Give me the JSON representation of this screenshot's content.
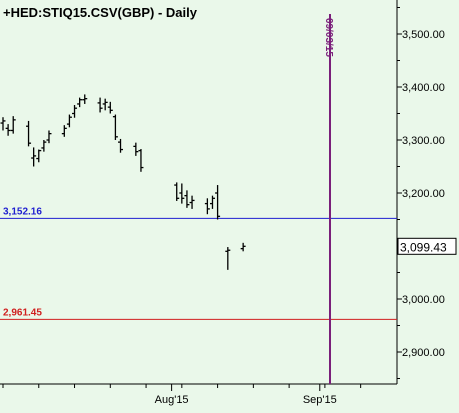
{
  "header": {
    "title": "+HED:STIQ15.CSV(GBP) - Daily"
  },
  "colors": {
    "background": "#eaf8ea",
    "bars": "#000000",
    "horizontal_line_blue": "#1f1fd0",
    "horizontal_line_red": "#d01f1f",
    "vertical_marker": "#7a1f7a",
    "axis_text": "#000000",
    "label_box_bg": "#ffffff"
  },
  "chart_data": {
    "type": "ohlc",
    "title": "+HED:STIQ15.CSV(GBP) - Daily",
    "xlabel": "",
    "ylabel": "",
    "ylim": [
      2830,
      3570
    ],
    "x_ticks": [
      {
        "date": "2015-08-03",
        "label": "Aug'15"
      },
      {
        "date": "2015-09-01",
        "label": "Sep'15"
      }
    ],
    "y_ticks": [
      {
        "value": 3500,
        "label": "3,500.00"
      },
      {
        "value": 3400,
        "label": "3,400.00"
      },
      {
        "value": 3300,
        "label": "3,300.00"
      },
      {
        "value": 3200,
        "label": "3,200.00"
      },
      {
        "value": 3100,
        "label": "3,100.00"
      },
      {
        "value": 3000,
        "label": "3,000.00"
      },
      {
        "value": 2900,
        "label": "2,900.00"
      }
    ],
    "last_value_label": {
      "value": 3099.43,
      "label": "3,099.43"
    },
    "horizontal_lines": [
      {
        "value": 3152.16,
        "label": "3,152.16",
        "color": "#1f1fd0"
      },
      {
        "value": 2961.45,
        "label": "2,961.45",
        "color": "#d01f1f"
      }
    ],
    "vertical_markers": [
      {
        "date": "2015-09-03",
        "label": "09/03/15",
        "color": "#7a1f7a"
      }
    ],
    "series": [
      {
        "values": [
          {
            "date": "2015-07-01",
            "open": 3332,
            "high": 3343,
            "low": 3318,
            "close": 3336
          },
          {
            "date": "2015-07-02",
            "open": 3322,
            "high": 3330,
            "low": 3308,
            "close": 3318
          },
          {
            "date": "2015-07-03",
            "open": 3318,
            "high": 3345,
            "low": 3312,
            "close": 3338
          },
          {
            "date": "2015-07-06",
            "open": 3326,
            "high": 3336,
            "low": 3288,
            "close": 3294
          },
          {
            "date": "2015-07-07",
            "open": 3266,
            "high": 3286,
            "low": 3250,
            "close": 3270
          },
          {
            "date": "2015-07-08",
            "open": 3265,
            "high": 3282,
            "low": 3258,
            "close": 3280
          },
          {
            "date": "2015-07-09",
            "open": 3285,
            "high": 3300,
            "low": 3278,
            "close": 3296
          },
          {
            "date": "2015-07-10",
            "open": 3300,
            "high": 3318,
            "low": 3294,
            "close": 3312
          },
          {
            "date": "2015-07-13",
            "open": 3312,
            "high": 3328,
            "low": 3306,
            "close": 3322
          },
          {
            "date": "2015-07-14",
            "open": 3330,
            "high": 3348,
            "low": 3324,
            "close": 3343
          },
          {
            "date": "2015-07-15",
            "open": 3350,
            "high": 3366,
            "low": 3342,
            "close": 3360
          },
          {
            "date": "2015-07-16",
            "open": 3368,
            "high": 3380,
            "low": 3362,
            "close": 3376
          },
          {
            "date": "2015-07-17",
            "open": 3376,
            "high": 3386,
            "low": 3368,
            "close": 3378
          },
          {
            "date": "2015-07-20",
            "open": 3370,
            "high": 3380,
            "low": 3352,
            "close": 3360
          },
          {
            "date": "2015-07-21",
            "open": 3368,
            "high": 3378,
            "low": 3356,
            "close": 3371
          },
          {
            "date": "2015-07-22",
            "open": 3362,
            "high": 3372,
            "low": 3350,
            "close": 3356
          },
          {
            "date": "2015-07-23",
            "open": 3344,
            "high": 3348,
            "low": 3300,
            "close": 3306
          },
          {
            "date": "2015-07-24",
            "open": 3296,
            "high": 3302,
            "low": 3276,
            "close": 3282
          },
          {
            "date": "2015-07-27",
            "open": 3288,
            "high": 3295,
            "low": 3270,
            "close": 3278
          },
          {
            "date": "2015-07-28",
            "open": 3280,
            "high": 3283,
            "low": 3240,
            "close": 3248
          },
          {
            "date": "2015-08-04",
            "open": 3215,
            "high": 3220,
            "low": 3185,
            "close": 3190
          },
          {
            "date": "2015-08-05",
            "open": 3200,
            "high": 3218,
            "low": 3180,
            "close": 3190
          },
          {
            "date": "2015-08-06",
            "open": 3195,
            "high": 3205,
            "low": 3172,
            "close": 3178
          },
          {
            "date": "2015-08-07",
            "open": 3182,
            "high": 3195,
            "low": 3170,
            "close": 3186
          },
          {
            "date": "2015-08-10",
            "open": 3180,
            "high": 3190,
            "low": 3160,
            "close": 3170
          },
          {
            "date": "2015-08-11",
            "open": 3180,
            "high": 3195,
            "low": 3170,
            "close": 3190
          },
          {
            "date": "2015-08-12",
            "open": 3200,
            "high": 3215,
            "low": 3150,
            "close": 3156
          },
          {
            "date": "2015-08-14",
            "open": 3090,
            "high": 3098,
            "low": 3055,
            "close": 3092
          },
          {
            "date": "2015-08-17",
            "open": 3095,
            "high": 3106,
            "low": 3090,
            "close": 3099.43
          }
        ]
      }
    ]
  }
}
